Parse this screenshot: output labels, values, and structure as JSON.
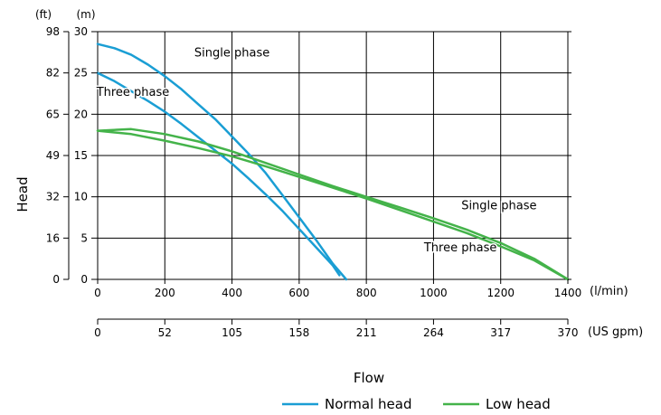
{
  "chart_data": {
    "type": "line",
    "xlabel": "Flow",
    "ylabel": "Head",
    "x_unit": "(l/min)",
    "x2_unit": "(US gpm)",
    "y_unit_ft": "(ft)",
    "y_unit_m": "(m)",
    "xlim": [
      0,
      1400
    ],
    "ylim": [
      0,
      30
    ],
    "x_ticks": [
      "0",
      "200",
      "400",
      "600",
      "800",
      "1000",
      "1200",
      "1400"
    ],
    "x2_ticks": [
      "0",
      "52",
      "105",
      "158",
      "211",
      "264",
      "317",
      "370"
    ],
    "y_ticks_m": [
      "0",
      "5",
      "10",
      "15",
      "20",
      "25",
      "30"
    ],
    "y_ticks_ft": [
      "0",
      "16",
      "32",
      "49",
      "65",
      "82",
      "98"
    ],
    "grid": true,
    "legend_position": "bottom-right",
    "colors": {
      "normal_head": "#1a9ed4",
      "low_head": "#44b34a",
      "grid": "#000000"
    },
    "series": [
      {
        "name": "Normal head",
        "curve": "Single phase",
        "color": "#1a9ed4",
        "x": [
          0,
          50,
          100,
          150,
          200,
          250,
          300,
          350,
          400,
          450,
          500,
          550,
          600,
          650,
          700,
          740
        ],
        "y": [
          28.5,
          28.0,
          27.2,
          26.0,
          24.6,
          23.0,
          21.2,
          19.4,
          17.3,
          15.2,
          12.9,
          10.2,
          7.5,
          4.8,
          1.9,
          0.0
        ]
      },
      {
        "name": "Normal head",
        "curve": "Three phase",
        "color": "#1a9ed4",
        "x": [
          0,
          50,
          100,
          150,
          200,
          250,
          300,
          350,
          400,
          450,
          500,
          550,
          600,
          650,
          700,
          720
        ],
        "y": [
          25.0,
          24.0,
          22.8,
          21.6,
          20.3,
          18.8,
          17.2,
          15.6,
          14.0,
          12.2,
          10.3,
          8.3,
          6.1,
          3.9,
          1.7,
          0.5
        ]
      },
      {
        "name": "Low head",
        "curve": "Single phase",
        "color": "#44b34a",
        "x": [
          0,
          100,
          200,
          300,
          400,
          500,
          600,
          700,
          800,
          900,
          1000,
          1100,
          1200,
          1300,
          1400
        ],
        "y": [
          18.0,
          18.2,
          17.6,
          16.7,
          15.5,
          14.1,
          12.7,
          11.3,
          10.0,
          8.7,
          7.4,
          6.0,
          4.4,
          2.5,
          0.0
        ]
      },
      {
        "name": "Low head",
        "curve": "Three phase",
        "color": "#44b34a",
        "x": [
          0,
          100,
          200,
          300,
          400,
          500,
          600,
          700,
          800,
          900,
          1000,
          1100,
          1200,
          1300,
          1400
        ],
        "y": [
          18.0,
          17.6,
          16.8,
          15.9,
          14.9,
          13.7,
          12.4,
          11.1,
          9.8,
          8.4,
          7.0,
          5.6,
          4.0,
          2.3,
          0.0
        ]
      }
    ],
    "annotations": [
      {
        "text": "Single phase",
        "x": 400,
        "y": 27.0
      },
      {
        "text": "Three phase",
        "x": 105,
        "y": 22.2
      },
      {
        "text": "Single phase",
        "x": 1195,
        "y": 8.5
      },
      {
        "text": "Three phase",
        "x": 1080,
        "y": 3.4
      }
    ],
    "legend": [
      {
        "label": "Normal head",
        "color": "#1a9ed4"
      },
      {
        "label": "Low head",
        "color": "#44b34a"
      }
    ]
  }
}
